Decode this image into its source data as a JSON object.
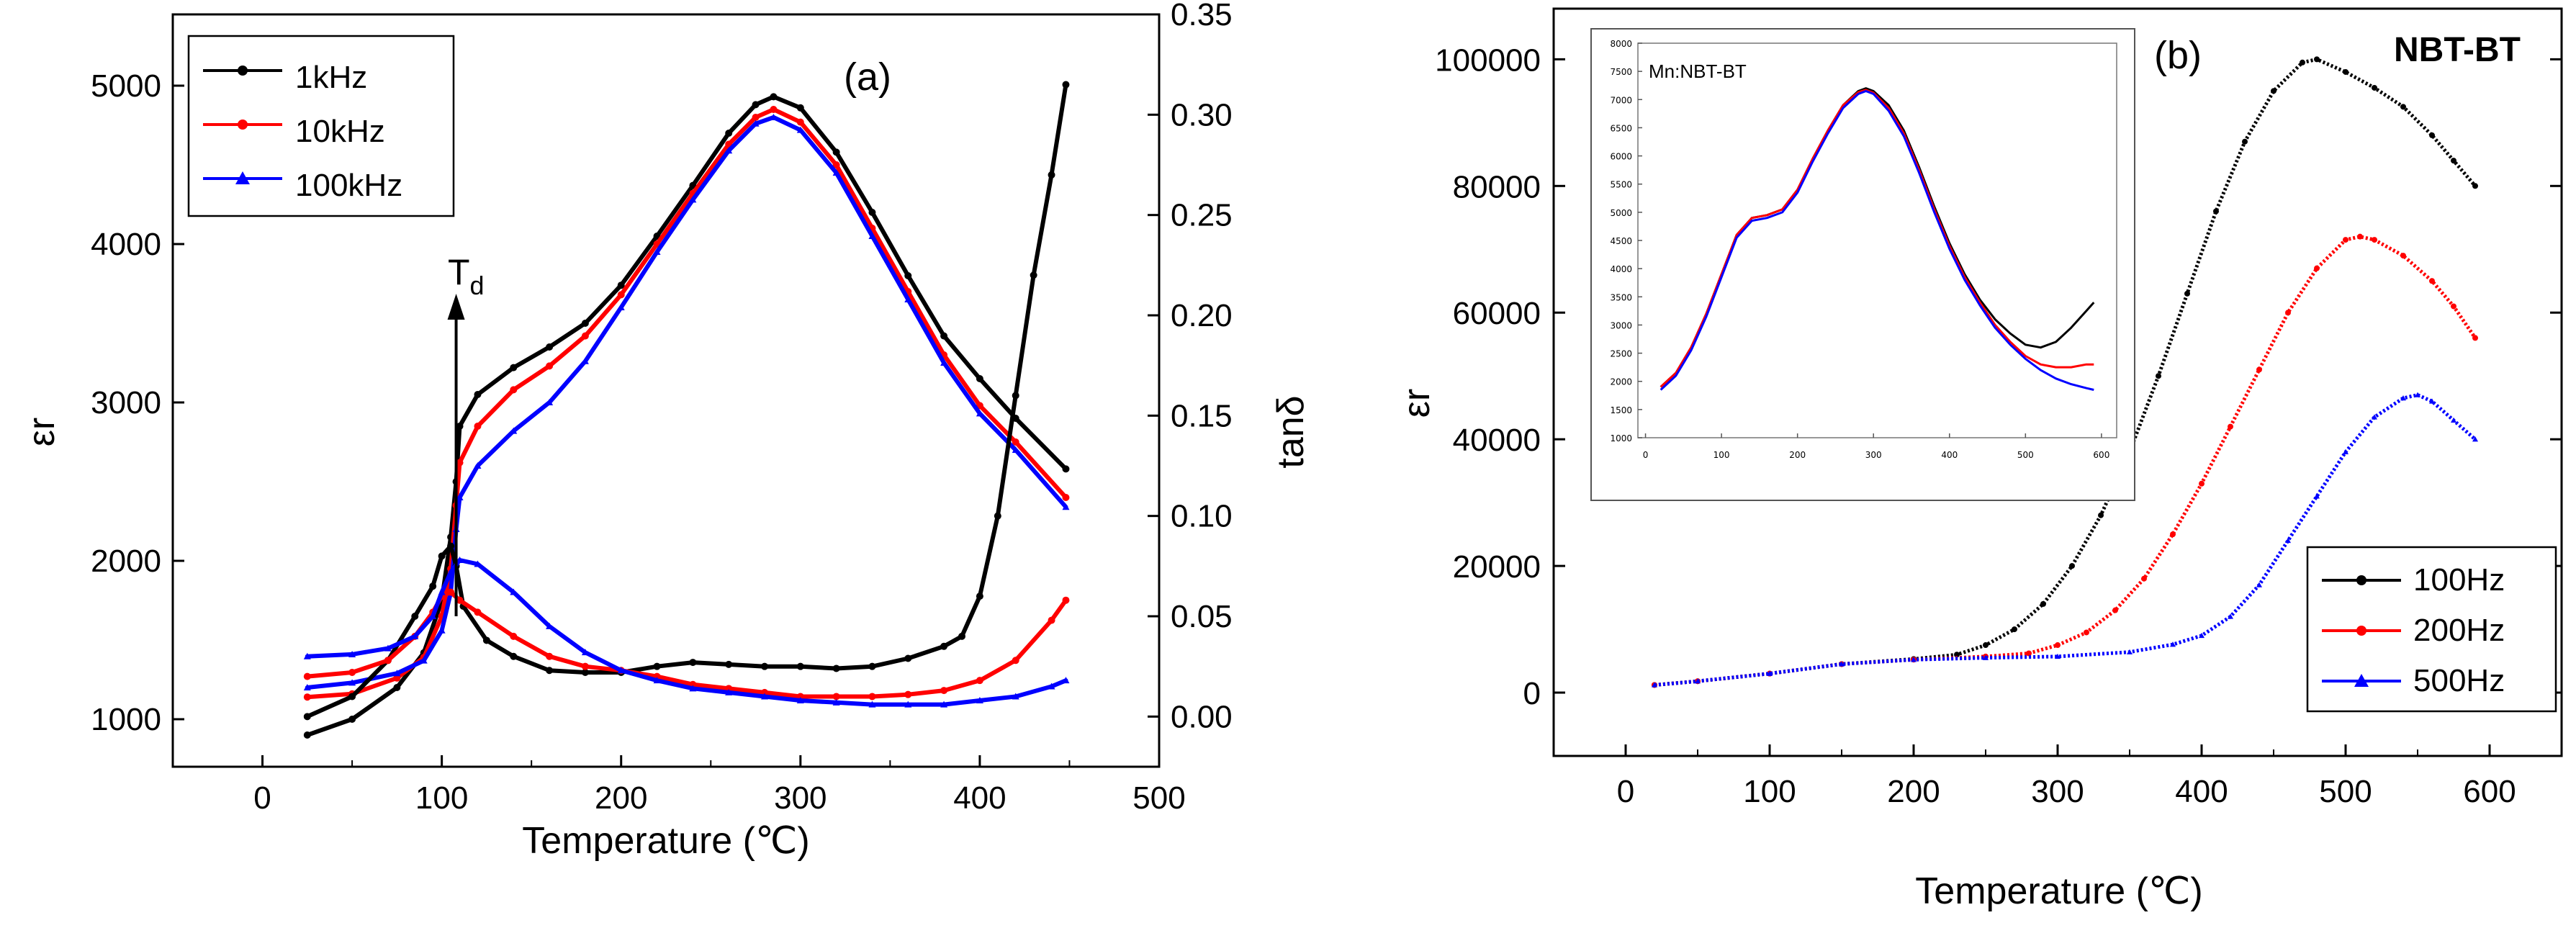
{
  "chart_data": [
    {
      "type": "line",
      "panel_label": "(a)",
      "xlabel": "Temperature (℃)",
      "ylabel": "εr",
      "y2label": "tanδ",
      "xlim": [
        -50,
        500
      ],
      "ylim": [
        700,
        5450
      ],
      "y2lim": [
        -0.025,
        0.35
      ],
      "xticks": [
        "0",
        "100",
        "200",
        "300",
        "400",
        "500"
      ],
      "yticks": [
        "1000",
        "2000",
        "3000",
        "4000",
        "5000"
      ],
      "y2ticks": [
        "0.00",
        "0.05",
        "0.10",
        "0.15",
        "0.20",
        "0.25",
        "0.30",
        "0.35"
      ],
      "annotation": {
        "text": "T",
        "subscript": "d",
        "x": 108,
        "arrow_from_y": 1650,
        "arrow_to_y": 3650
      },
      "legend_position": "top-left",
      "series": [
        {
          "name": "1kHz",
          "color": "#000000",
          "axis": "left",
          "x": [
            25,
            50,
            75,
            90,
            100,
            105,
            108,
            110,
            120,
            140,
            160,
            180,
            200,
            220,
            240,
            260,
            275,
            285,
            300,
            320,
            340,
            360,
            380,
            400,
            420,
            448
          ],
          "y": [
            900,
            1000,
            1200,
            1420,
            1750,
            2150,
            2500,
            2850,
            3050,
            3220,
            3350,
            3500,
            3740,
            4050,
            4370,
            4700,
            4880,
            4930,
            4860,
            4580,
            4200,
            3800,
            3420,
            3150,
            2900,
            2580
          ]
        },
        {
          "name": "10kHz",
          "color": "#ff0000",
          "axis": "left",
          "x": [
            25,
            50,
            75,
            90,
            100,
            105,
            108,
            110,
            120,
            140,
            160,
            180,
            200,
            220,
            240,
            260,
            275,
            285,
            300,
            320,
            340,
            360,
            380,
            400,
            420,
            448
          ],
          "y": [
            1140,
            1160,
            1260,
            1390,
            1650,
            1950,
            2350,
            2620,
            2850,
            3080,
            3230,
            3420,
            3680,
            4000,
            4320,
            4630,
            4800,
            4850,
            4770,
            4500,
            4100,
            3700,
            3300,
            2980,
            2750,
            2400
          ]
        },
        {
          "name": "100kHz",
          "color": "#0000ff",
          "axis": "left",
          "x": [
            25,
            50,
            75,
            90,
            100,
            105,
            108,
            110,
            120,
            140,
            160,
            180,
            200,
            220,
            240,
            260,
            275,
            285,
            300,
            320,
            340,
            360,
            380,
            400,
            420,
            448
          ],
          "y": [
            1200,
            1230,
            1290,
            1370,
            1560,
            1800,
            2200,
            2400,
            2600,
            2820,
            3000,
            3260,
            3600,
            3950,
            4280,
            4590,
            4760,
            4800,
            4720,
            4450,
            4050,
            3650,
            3250,
            2930,
            2700,
            2340
          ]
        },
        {
          "name": "1kHz tanδ",
          "color": "#000000",
          "axis": "right",
          "x": [
            25,
            50,
            70,
            85,
            95,
            100,
            105,
            108,
            112,
            125,
            140,
            160,
            180,
            200,
            220,
            240,
            260,
            280,
            300,
            320,
            340,
            360,
            380,
            390,
            400,
            410,
            420,
            430,
            440,
            448
          ],
          "y": [
            0.0,
            0.01,
            0.028,
            0.05,
            0.065,
            0.08,
            0.085,
            0.075,
            0.055,
            0.038,
            0.03,
            0.023,
            0.022,
            0.022,
            0.025,
            0.027,
            0.026,
            0.025,
            0.025,
            0.024,
            0.025,
            0.029,
            0.035,
            0.04,
            0.06,
            0.1,
            0.16,
            0.22,
            0.27,
            0.315
          ]
        },
        {
          "name": "10kHz tanδ",
          "color": "#ff0000",
          "axis": "right",
          "x": [
            25,
            50,
            70,
            85,
            95,
            100,
            105,
            110,
            120,
            140,
            160,
            180,
            200,
            220,
            240,
            260,
            280,
            300,
            320,
            340,
            360,
            380,
            400,
            420,
            440,
            448
          ],
          "y": [
            0.02,
            0.022,
            0.028,
            0.04,
            0.052,
            0.06,
            0.062,
            0.058,
            0.052,
            0.04,
            0.03,
            0.025,
            0.023,
            0.02,
            0.016,
            0.014,
            0.012,
            0.01,
            0.01,
            0.01,
            0.011,
            0.013,
            0.018,
            0.028,
            0.048,
            0.058
          ]
        },
        {
          "name": "100kHz tanδ",
          "color": "#0000ff",
          "axis": "right",
          "x": [
            25,
            50,
            70,
            85,
            95,
            100,
            105,
            110,
            120,
            140,
            160,
            180,
            200,
            220,
            240,
            260,
            280,
            300,
            320,
            340,
            360,
            380,
            400,
            420,
            440,
            448
          ],
          "y": [
            0.03,
            0.031,
            0.034,
            0.04,
            0.05,
            0.062,
            0.072,
            0.078,
            0.076,
            0.062,
            0.045,
            0.032,
            0.023,
            0.018,
            0.014,
            0.012,
            0.01,
            0.008,
            0.007,
            0.006,
            0.006,
            0.006,
            0.008,
            0.01,
            0.015,
            0.018
          ]
        }
      ]
    },
    {
      "type": "line",
      "panel_label": "(b)",
      "title": "NBT-BT",
      "xlabel": "Temperature (℃)",
      "ylabel": "εr",
      "xlim": [
        -50,
        650
      ],
      "ylim": [
        -10000,
        108000
      ],
      "xticks": [
        "0",
        "100",
        "200",
        "300",
        "400",
        "500",
        "600"
      ],
      "yticks": [
        "0",
        "20000",
        "40000",
        "60000",
        "80000",
        "100000"
      ],
      "legend_position": "bottom-right",
      "series": [
        {
          "name": "100Hz",
          "color": "#000000",
          "x": [
            20,
            50,
            100,
            150,
            200,
            230,
            250,
            270,
            290,
            310,
            330,
            350,
            370,
            390,
            410,
            430,
            450,
            470,
            480,
            500,
            520,
            540,
            560,
            575,
            590
          ],
          "y": [
            1200,
            1800,
            3000,
            4500,
            5300,
            6000,
            7500,
            10000,
            14000,
            20000,
            28000,
            38000,
            50000,
            63000,
            76000,
            87000,
            95000,
            99500,
            100000,
            98000,
            95500,
            92500,
            88000,
            84000,
            80000
          ]
        },
        {
          "name": "200Hz",
          "color": "#ff0000",
          "x": [
            20,
            50,
            100,
            150,
            200,
            250,
            280,
            300,
            320,
            340,
            360,
            380,
            400,
            420,
            440,
            460,
            480,
            500,
            510,
            520,
            540,
            560,
            575,
            590
          ],
          "y": [
            1200,
            1800,
            3000,
            4500,
            5200,
            5700,
            6200,
            7500,
            9500,
            13000,
            18000,
            25000,
            33000,
            42000,
            51000,
            60000,
            67000,
            71500,
            72000,
            71500,
            69000,
            65000,
            61000,
            56000
          ]
        },
        {
          "name": "500Hz",
          "color": "#0000ff",
          "x": [
            20,
            50,
            100,
            150,
            200,
            250,
            300,
            350,
            380,
            400,
            420,
            440,
            460,
            480,
            500,
            520,
            540,
            550,
            560,
            575,
            590
          ],
          "y": [
            1200,
            1800,
            3000,
            4500,
            5200,
            5500,
            5700,
            6400,
            7600,
            9000,
            12000,
            17000,
            24000,
            31000,
            38000,
            43500,
            46500,
            47000,
            46000,
            43000,
            40000
          ]
        }
      ]
    },
    {
      "type": "line",
      "role": "inset",
      "title": "Mn:NBT-BT",
      "xlim": [
        -10,
        620
      ],
      "ylim": [
        1000,
        8000
      ],
      "xticks": [
        "0",
        "100",
        "200",
        "300",
        "400",
        "500",
        "600"
      ],
      "yticks": [
        "1000",
        "1500",
        "2000",
        "2500",
        "3000",
        "3500",
        "4000",
        "4500",
        "5000",
        "5500",
        "6000",
        "6500",
        "7000",
        "7500",
        "8000"
      ],
      "series": [
        {
          "name": "100Hz",
          "color": "#000000",
          "x": [
            20,
            40,
            60,
            80,
            100,
            120,
            140,
            160,
            180,
            200,
            220,
            240,
            260,
            280,
            290,
            300,
            320,
            340,
            360,
            380,
            400,
            420,
            440,
            460,
            480,
            500,
            520,
            540,
            560,
            580,
            590
          ],
          "y": [
            1900,
            2150,
            2600,
            3200,
            3900,
            4600,
            4900,
            4950,
            5050,
            5400,
            5950,
            6450,
            6900,
            7150,
            7200,
            7150,
            6900,
            6450,
            5800,
            5100,
            4450,
            3900,
            3450,
            3100,
            2850,
            2650,
            2600,
            2700,
            2950,
            3250,
            3400
          ]
        },
        {
          "name": "200Hz",
          "color": "#ff0000",
          "x": [
            20,
            40,
            60,
            80,
            100,
            120,
            140,
            160,
            180,
            200,
            220,
            240,
            260,
            280,
            290,
            300,
            320,
            340,
            360,
            380,
            400,
            420,
            440,
            460,
            480,
            500,
            520,
            540,
            560,
            580,
            590
          ],
          "y": [
            1900,
            2150,
            2600,
            3200,
            3900,
            4600,
            4900,
            4950,
            5050,
            5400,
            5950,
            6450,
            6900,
            7130,
            7170,
            7120,
            6850,
            6400,
            5750,
            5050,
            4400,
            3850,
            3400,
            3000,
            2700,
            2450,
            2300,
            2250,
            2250,
            2300,
            2300
          ]
        },
        {
          "name": "500Hz",
          "color": "#0000ff",
          "x": [
            20,
            40,
            60,
            80,
            100,
            120,
            140,
            160,
            180,
            200,
            220,
            240,
            260,
            280,
            290,
            300,
            320,
            340,
            360,
            380,
            400,
            420,
            440,
            460,
            480,
            500,
            520,
            540,
            560,
            580,
            590
          ],
          "y": [
            1850,
            2100,
            2550,
            3150,
            3850,
            4550,
            4850,
            4900,
            5000,
            5350,
            5900,
            6400,
            6850,
            7100,
            7150,
            7100,
            6800,
            6350,
            5700,
            5000,
            4350,
            3800,
            3350,
            2950,
            2650,
            2400,
            2200,
            2050,
            1950,
            1880,
            1850
          ]
        }
      ]
    }
  ]
}
